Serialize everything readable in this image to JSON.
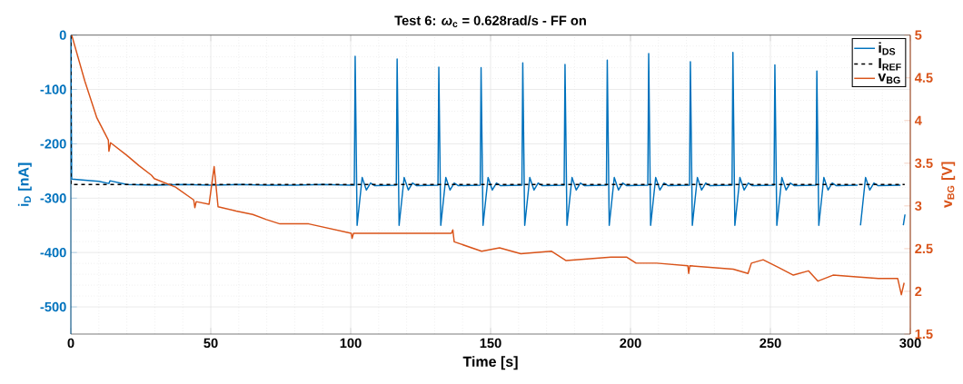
{
  "chart_data": {
    "type": "line",
    "title": "Test 6: *ω*$_{c}$ = 0.628rad/s - FF on",
    "xlabel": "Time [s]",
    "ylabel": "i$_{D}$ [nA]",
    "y2label": "v$_{BG}$ [V]",
    "xlim": [
      0,
      300
    ],
    "ylim": [
      -550,
      0
    ],
    "y2lim": [
      1.5,
      5
    ],
    "xticks": [
      0,
      50,
      100,
      150,
      200,
      250,
      300
    ],
    "yticks": [
      -500,
      -400,
      -300,
      -200,
      -100,
      0
    ],
    "y2ticks": [
      1.5,
      2,
      2.5,
      3,
      3.5,
      4,
      4.5,
      5
    ],
    "grid": true,
    "legend": "top right",
    "series": [
      {
        "name": "i$_{DS}$",
        "color": "#0072bd",
        "line_style": "solid",
        "x": [
          0,
          0.3,
          5,
          10,
          13.6,
          14,
          20,
          30,
          40,
          50,
          60,
          70,
          80,
          90,
          100,
          101.3,
          101.6,
          102.3,
          104.1,
          105.6,
          107.1,
          108.6,
          116.3,
          116.6,
          117.3,
          119.1,
          120.6,
          122.1,
          123.6,
          131.2,
          131.5,
          132.2,
          134,
          135.5,
          137,
          138.5,
          146.3,
          146.6,
          147.3,
          149.1,
          150.6,
          152.1,
          153.6,
          161.2,
          161.5,
          162.2,
          164,
          165.5,
          167,
          168.5,
          176.3,
          176.6,
          177.3,
          179.1,
          180.6,
          182.1,
          183.6,
          191.4,
          191.7,
          192.4,
          194.2,
          195.7,
          197.2,
          198.7,
          206.2,
          206.5,
          207.2,
          209,
          210.5,
          212,
          213.5,
          221.1,
          221.4,
          222.1,
          223.9,
          225.4,
          226.9,
          228.4,
          236.3,
          236.6,
          237.3,
          239.1,
          240.6,
          242.1,
          243.6,
          251.3,
          251.6,
          252.3,
          254.1,
          255.6,
          257.1,
          258.6,
          266.3,
          266.6,
          267.3,
          269.1,
          270.6,
          272.1,
          273.6,
          281.2,
          281.5,
          282.2,
          284,
          285.5,
          287,
          288.5,
          296.5,
          296.8,
          297.5,
          298.1
        ],
        "values": [
          0,
          -265,
          -267,
          -269,
          -273,
          -268,
          -275,
          -276,
          -275,
          -276,
          -275,
          -276,
          -276,
          -275,
          -276,
          -276,
          -39,
          -350,
          -262,
          -285,
          -272,
          -277,
          -276,
          -44,
          -350,
          -262,
          -285,
          -272,
          -277,
          -276,
          -59,
          -350,
          -262,
          -285,
          -272,
          -277,
          -276,
          -60,
          -350,
          -262,
          -285,
          -272,
          -277,
          -276,
          -51,
          -350,
          -262,
          -285,
          -272,
          -277,
          -276,
          -54,
          -350,
          -262,
          -285,
          -272,
          -277,
          -276,
          -46,
          -350,
          -262,
          -285,
          -272,
          -277,
          -276,
          -34,
          -350,
          -262,
          -285,
          -272,
          -277,
          -276,
          -49,
          -350,
          -262,
          -285,
          -272,
          -277,
          -276,
          -32,
          -350,
          -262,
          -285,
          -272,
          -277,
          -276,
          -55,
          -350,
          -262,
          -285,
          -272,
          -277,
          -276,
          -66,
          -350,
          -262,
          -285,
          -272,
          -277,
          -276,
          null,
          -350,
          -262,
          -285,
          -272,
          -277,
          -276,
          null,
          -350,
          -330
        ]
      },
      {
        "name": "I$_{REF}$",
        "color": "#000000",
        "line_style": "dashed",
        "x": [
          0,
          0.05,
          298
        ],
        "values": [
          0,
          -275,
          -275
        ]
      },
      {
        "name": "v$_{BG}$",
        "color": "#d95319",
        "line_style": "solid",
        "axis": "y2",
        "x": [
          0.3,
          5,
          9.3,
          13.4,
          13.6,
          14.2,
          20.1,
          24.4,
          28.8,
          29.8,
          37.4,
          43.9,
          44.3,
          44.8,
          49.4,
          51.2,
          52.6,
          59.1,
          65,
          69.9,
          74.7,
          85,
          100.2,
          100.5,
          101,
          116.5,
          136,
          136.5,
          137,
          146.8,
          153.2,
          160.8,
          171.7,
          177,
          193,
          198.7,
          202,
          209.4,
          220.5,
          220.8,
          221.2,
          236.7,
          242,
          243.2,
          247.4,
          252.9,
          258.2,
          263.6,
          267,
          272.4,
          280.8,
          288.6,
          295.5,
          296.8,
          297.8
        ],
        "values": [
          5.0,
          4.46,
          4.03,
          3.77,
          3.64,
          3.74,
          3.59,
          3.47,
          3.36,
          3.32,
          3.22,
          3.07,
          2.98,
          3.05,
          3.02,
          3.46,
          2.99,
          2.94,
          2.9,
          2.84,
          2.79,
          2.79,
          2.68,
          2.62,
          2.68,
          2.68,
          2.68,
          2.72,
          2.58,
          2.47,
          2.51,
          2.44,
          2.47,
          2.36,
          2.4,
          2.4,
          2.33,
          2.33,
          2.3,
          2.21,
          2.3,
          2.26,
          2.21,
          2.33,
          2.37,
          2.28,
          2.19,
          2.24,
          2.12,
          2.19,
          2.17,
          2.15,
          2.15,
          1.96,
          2.1
        ]
      }
    ]
  }
}
